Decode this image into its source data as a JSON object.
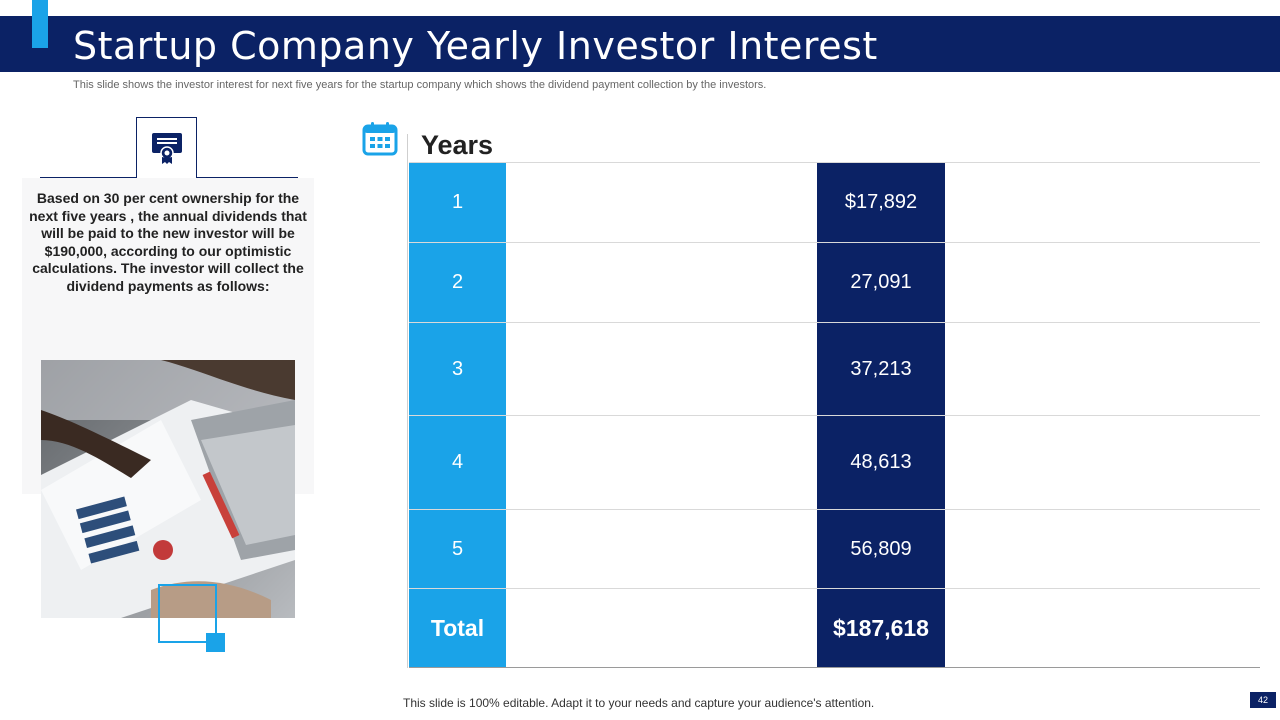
{
  "header": {
    "title": "Startup Company Yearly Investor Interest",
    "subtitle": "This slide shows the investor interest for next five years for the startup company which shows the dividend payment collection by the investors."
  },
  "left_panel": {
    "icon": "certificate-icon",
    "description": "Based on 30 per cent ownership for the next five years , the annual dividends that will be paid to the new investor will be $190,000, according to our optimistic calculations. The investor will collect the dividend payments as follows:"
  },
  "table": {
    "icon": "calendar-icon",
    "header": "Years",
    "rows": [
      {
        "year": "1",
        "value": "$17,892"
      },
      {
        "year": "2",
        "value": "27,091"
      },
      {
        "year": "3",
        "value": "37,213"
      },
      {
        "year": "4",
        "value": "48,613"
      },
      {
        "year": "5",
        "value": "56,809"
      }
    ],
    "total": {
      "label": "Total",
      "value": "$187,618"
    }
  },
  "footer": {
    "note": "This slide is 100% editable. Adapt it to your needs and capture your audience's attention.",
    "page_number": "42"
  },
  "colors": {
    "navy": "#0b2265",
    "cyan": "#1aa3e8"
  }
}
